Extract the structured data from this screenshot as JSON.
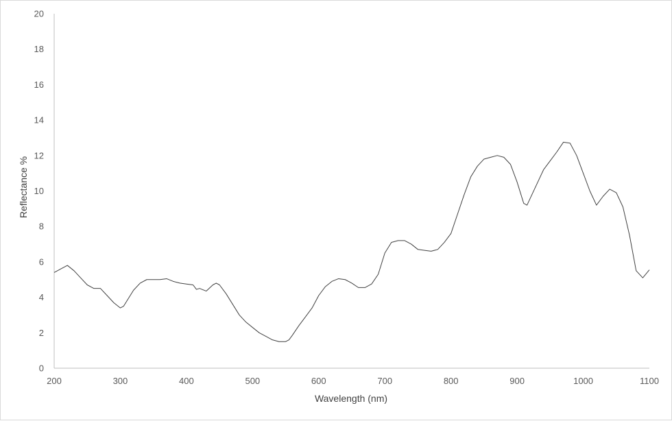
{
  "chart_data": {
    "type": "line",
    "title": "",
    "xlabel": "Wavelength (nm)",
    "ylabel": "Reflectance %",
    "xlim": [
      200,
      1100
    ],
    "ylim": [
      0,
      20
    ],
    "x_ticks": [
      "200",
      "300",
      "400",
      "500",
      "600",
      "700",
      "800",
      "900",
      "1000",
      "1100"
    ],
    "y_ticks": [
      "0",
      "2",
      "4",
      "6",
      "8",
      "10",
      "12",
      "14",
      "16",
      "18",
      "20"
    ],
    "grid": false,
    "legend": "none",
    "line_color": "#404040",
    "series": [
      {
        "x": [
          200,
          210,
          220,
          230,
          240,
          250,
          260,
          270,
          280,
          290,
          300,
          305,
          310,
          320,
          330,
          340,
          350,
          360,
          370,
          380,
          390,
          400,
          410,
          415,
          420,
          430,
          440,
          445,
          450,
          460,
          470,
          480,
          490,
          500,
          510,
          520,
          530,
          540,
          550,
          555,
          560,
          570,
          580,
          590,
          600,
          610,
          620,
          630,
          640,
          650,
          660,
          670,
          680,
          690,
          700,
          710,
          720,
          730,
          740,
          750,
          760,
          770,
          780,
          790,
          800,
          810,
          820,
          830,
          840,
          850,
          860,
          870,
          880,
          890,
          900,
          910,
          915,
          920,
          930,
          940,
          950,
          960,
          970,
          980,
          990,
          1000,
          1010,
          1020,
          1030,
          1040,
          1050,
          1060,
          1070,
          1080,
          1090,
          1100
        ],
        "y": [
          5.4,
          5.6,
          5.8,
          5.5,
          5.1,
          4.7,
          4.5,
          4.5,
          4.1,
          3.7,
          3.4,
          3.5,
          3.8,
          4.4,
          4.8,
          5.0,
          5.0,
          5.0,
          5.05,
          4.9,
          4.8,
          4.75,
          4.7,
          4.45,
          4.5,
          4.35,
          4.7,
          4.8,
          4.7,
          4.2,
          3.6,
          3.0,
          2.6,
          2.3,
          2.0,
          1.8,
          1.6,
          1.5,
          1.5,
          1.6,
          1.85,
          2.4,
          2.9,
          3.4,
          4.1,
          4.6,
          4.9,
          5.05,
          5.0,
          4.8,
          4.55,
          4.55,
          4.75,
          5.3,
          6.5,
          7.1,
          7.2,
          7.2,
          7.0,
          6.7,
          6.65,
          6.6,
          6.7,
          7.1,
          7.6,
          8.7,
          9.8,
          10.8,
          11.4,
          11.8,
          11.9,
          12.0,
          11.9,
          11.5,
          10.5,
          9.3,
          9.2,
          9.6,
          10.4,
          11.2,
          11.7,
          12.2,
          12.75,
          12.7,
          12.0,
          11.0,
          10.0,
          9.2,
          9.7,
          10.1,
          9.9,
          9.1,
          7.5,
          5.5,
          5.1,
          5.55
        ]
      }
    ]
  }
}
